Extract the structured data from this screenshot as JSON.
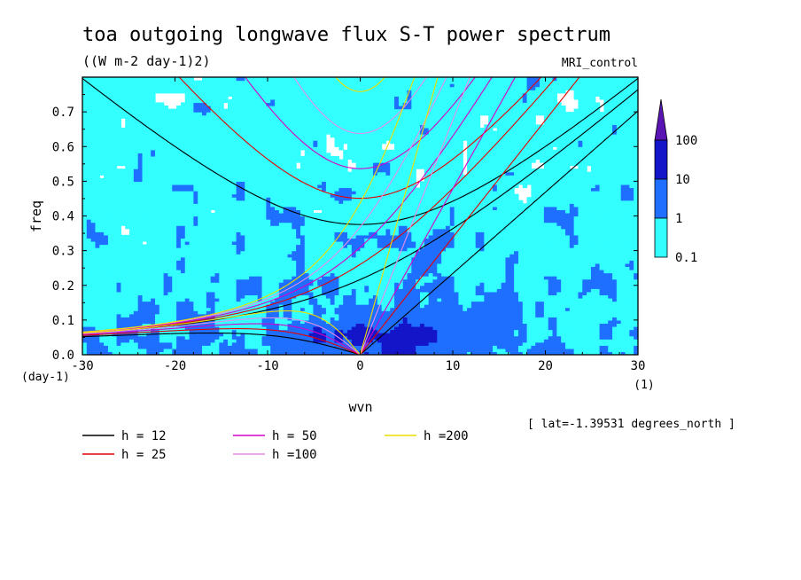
{
  "header": {
    "title": "toa outgoing longwave flux S-T power spectrum",
    "units": "((W m-2 day-1)2)",
    "model": "MRI_control",
    "lat_note": "[ lat=-1.39531 degrees_north ]"
  },
  "colors": {
    "levels": [
      "#ffffff",
      "#33ffff",
      "#1e6eff",
      "#1414c8",
      "#5a14b4"
    ],
    "curves": {
      "12": "#000000",
      "25": "#e60000",
      "50": "#d700c8",
      "100": "#e68ce6",
      "200": "#f0dc00"
    }
  },
  "chart_data": {
    "type": "heatmap",
    "xlabel": "wvn",
    "ylabel": "freq",
    "x_unit": "(1)",
    "y_unit": "(day-1)",
    "xlim": [
      -30,
      30
    ],
    "ylim": [
      0,
      0.8
    ],
    "x_ticks": [
      -30,
      -20,
      -10,
      0,
      10,
      20,
      30
    ],
    "x_tick_labels": [
      "-30",
      "-20",
      "-10",
      "0",
      "10",
      "20",
      "30"
    ],
    "y_ticks": [
      0.0,
      0.1,
      0.2,
      0.3,
      0.4,
      0.5,
      0.6,
      0.7
    ],
    "y_tick_labels": [
      "0.0",
      "0.1",
      "0.2",
      "0.3",
      "0.4",
      "0.5",
      "0.6",
      "0.7"
    ],
    "colorbar": {
      "labels": [
        "0.1",
        "1",
        "10",
        "100"
      ],
      "levels": [
        0.1,
        1,
        10,
        100
      ]
    },
    "dispersion_curves": {
      "equivalent_depths_m": [
        12,
        25,
        50,
        100,
        200
      ],
      "legend": [
        "h = 12",
        "h = 25",
        "h = 50",
        "h =100",
        "h =200"
      ],
      "legend_placement": "below"
    }
  }
}
